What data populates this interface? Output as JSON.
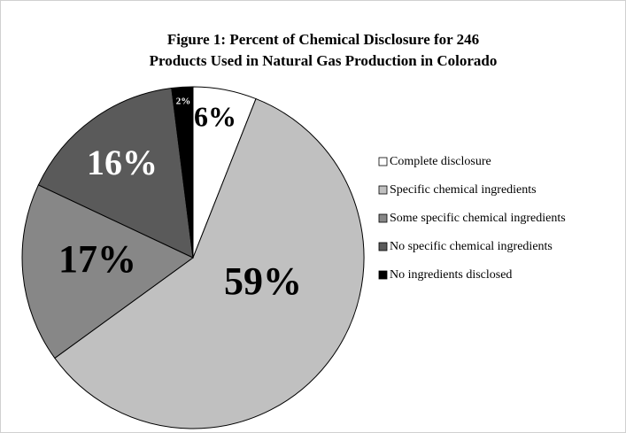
{
  "chart_data": {
    "type": "pie",
    "title": [
      "Figure 1:  Percent of Chemical Disclosure for 246",
      "Products Used in Natural Gas Production in Colorado"
    ],
    "categories": [
      "Complete disclosure",
      "Specific chemical ingredients",
      "Some specific chemical ingredients",
      "No specific chemical ingredients",
      "No ingredients disclosed"
    ],
    "values": [
      6,
      59,
      17,
      16,
      2
    ],
    "value_labels": [
      "6%",
      "59%",
      "17%",
      "16%",
      "2%"
    ],
    "colors": [
      "#ffffff",
      "#c0c0c0",
      "#878787",
      "#5a5a5a",
      "#000000"
    ],
    "legend": "right"
  }
}
